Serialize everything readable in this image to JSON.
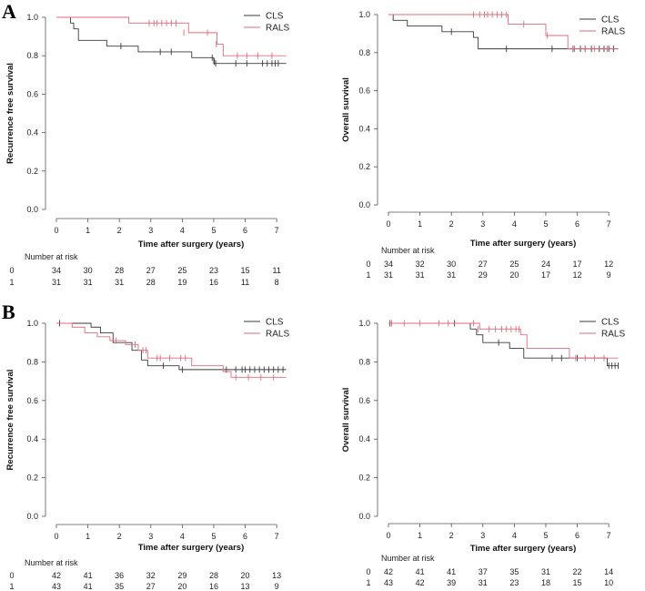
{
  "panel_letters": [
    "A",
    "B"
  ],
  "chart_data": [
    {
      "type": "line",
      "panel": "A",
      "title": "",
      "xlabel": "Time after surgery (years)",
      "ylabel": "Recurrence free survival",
      "xlim": [
        0,
        7.4
      ],
      "ylim": [
        0,
        1
      ],
      "xticks": [
        0,
        1,
        2,
        3,
        4,
        5,
        6,
        7
      ],
      "yticks": [
        0.0,
        0.2,
        0.4,
        0.6,
        0.8,
        1.0
      ],
      "legend": "top-right",
      "series": [
        {
          "name": "CLS",
          "color": "#3a3a3a",
          "steps": [
            [
              0,
              1.0
            ],
            [
              0.45,
              0.97
            ],
            [
              0.55,
              0.94
            ],
            [
              0.7,
              0.88
            ],
            [
              1.6,
              0.85
            ],
            [
              2.6,
              0.82
            ],
            [
              4.3,
              0.79
            ],
            [
              5.0,
              0.76
            ],
            [
              7.3,
              0.76
            ]
          ],
          "censors": [
            [
              2.05,
              0.85
            ],
            [
              3.3,
              0.82
            ],
            [
              3.65,
              0.82
            ],
            [
              4.95,
              0.79
            ],
            [
              5.02,
              0.77
            ],
            [
              5.06,
              0.76
            ],
            [
              5.7,
              0.76
            ],
            [
              6.05,
              0.76
            ],
            [
              6.55,
              0.76
            ],
            [
              6.7,
              0.76
            ],
            [
              6.85,
              0.76
            ],
            [
              6.95,
              0.76
            ],
            [
              7.05,
              0.76
            ]
          ]
        },
        {
          "name": "RALS",
          "color": "#e06a7e",
          "steps": [
            [
              0,
              1.0
            ],
            [
              2.3,
              0.97
            ],
            [
              4.2,
              0.92
            ],
            [
              5.1,
              0.86
            ],
            [
              5.3,
              0.8
            ],
            [
              7.3,
              0.8
            ]
          ],
          "censors": [
            [
              2.95,
              0.97
            ],
            [
              3.1,
              0.97
            ],
            [
              3.2,
              0.97
            ],
            [
              3.35,
              0.97
            ],
            [
              3.5,
              0.97
            ],
            [
              3.65,
              0.97
            ],
            [
              3.8,
              0.97
            ],
            [
              4.05,
              0.92
            ],
            [
              4.8,
              0.92
            ],
            [
              5.08,
              0.86
            ],
            [
              5.75,
              0.8
            ],
            [
              6.05,
              0.8
            ],
            [
              6.4,
              0.8
            ],
            [
              6.85,
              0.8
            ]
          ]
        }
      ],
      "risk_table": {
        "title": "Number at risk",
        "rows": [
          {
            "label": "0",
            "values": [
              "34",
              "30",
              "28",
              "27",
              "25",
              "23",
              "15",
              "11"
            ]
          },
          {
            "label": "1",
            "values": [
              "31",
              "31",
              "31",
              "28",
              "19",
              "16",
              "11",
              "8"
            ]
          }
        ]
      }
    },
    {
      "type": "line",
      "panel": "A",
      "title": "",
      "xlabel": "Time after surgery (years)",
      "ylabel": "Overall survival",
      "xlim": [
        0,
        7.4
      ],
      "ylim": [
        0,
        1
      ],
      "xticks": [
        0,
        1,
        2,
        3,
        4,
        5,
        6,
        7
      ],
      "yticks": [
        0.0,
        0.2,
        0.4,
        0.6,
        0.8,
        1.0
      ],
      "legend": "top-right",
      "series": [
        {
          "name": "CLS",
          "color": "#3a3a3a",
          "steps": [
            [
              0,
              1.0
            ],
            [
              0.15,
              0.97
            ],
            [
              0.6,
              0.94
            ],
            [
              1.7,
              0.91
            ],
            [
              2.7,
              0.88
            ],
            [
              2.85,
              0.82
            ],
            [
              7.3,
              0.82
            ]
          ],
          "censors": [
            [
              2.0,
              0.91
            ],
            [
              3.75,
              0.82
            ],
            [
              5.2,
              0.82
            ],
            [
              5.9,
              0.82
            ],
            [
              6.1,
              0.82
            ],
            [
              6.25,
              0.82
            ],
            [
              6.45,
              0.82
            ],
            [
              6.7,
              0.82
            ],
            [
              6.85,
              0.82
            ],
            [
              7.0,
              0.82
            ],
            [
              7.15,
              0.82
            ]
          ]
        },
        {
          "name": "RALS",
          "color": "#e06a7e",
          "steps": [
            [
              0,
              1.0
            ],
            [
              3.8,
              0.95
            ],
            [
              5.0,
              0.89
            ],
            [
              5.7,
              0.82
            ],
            [
              7.3,
              0.82
            ]
          ],
          "censors": [
            [
              2.7,
              1.0
            ],
            [
              2.9,
              1.0
            ],
            [
              3.05,
              1.0
            ],
            [
              3.15,
              1.0
            ],
            [
              3.3,
              1.0
            ],
            [
              3.45,
              1.0
            ],
            [
              3.6,
              1.0
            ],
            [
              3.75,
              1.0
            ],
            [
              4.3,
              0.95
            ],
            [
              5.05,
              0.89
            ],
            [
              5.85,
              0.82
            ],
            [
              6.25,
              0.82
            ],
            [
              6.55,
              0.82
            ],
            [
              6.95,
              0.82
            ]
          ]
        }
      ],
      "risk_table": {
        "title": "Number at risk",
        "rows": [
          {
            "label": "0",
            "values": [
              "34",
              "32",
              "30",
              "27",
              "25",
              "24",
              "17",
              "12"
            ]
          },
          {
            "label": "1",
            "values": [
              "31",
              "31",
              "31",
              "29",
              "20",
              "17",
              "12",
              "9"
            ]
          }
        ]
      }
    },
    {
      "type": "line",
      "panel": "B",
      "title": "",
      "xlabel": "Time after surgery (years)",
      "ylabel": "Recurrence free survival",
      "xlim": [
        0,
        7.4
      ],
      "ylim": [
        0,
        1
      ],
      "xticks": [
        0,
        1,
        2,
        3,
        4,
        5,
        6,
        7
      ],
      "yticks": [
        0.0,
        0.2,
        0.4,
        0.6,
        0.8,
        1.0
      ],
      "legend": "top-right",
      "series": [
        {
          "name": "CLS",
          "color": "#3a3a3a",
          "steps": [
            [
              0,
              1.0
            ],
            [
              1.1,
              0.98
            ],
            [
              1.4,
              0.95
            ],
            [
              1.8,
              0.9
            ],
            [
              2.4,
              0.86
            ],
            [
              2.7,
              0.81
            ],
            [
              2.9,
              0.78
            ],
            [
              3.9,
              0.76
            ],
            [
              7.3,
              0.76
            ]
          ],
          "censors": [
            [
              0.1,
              1.0
            ],
            [
              3.4,
              0.78
            ],
            [
              4.0,
              0.76
            ],
            [
              5.4,
              0.76
            ],
            [
              5.7,
              0.76
            ],
            [
              5.9,
              0.76
            ],
            [
              6.0,
              0.76
            ],
            [
              6.15,
              0.76
            ],
            [
              6.3,
              0.76
            ],
            [
              6.45,
              0.76
            ],
            [
              6.6,
              0.76
            ],
            [
              6.75,
              0.76
            ],
            [
              6.9,
              0.76
            ],
            [
              7.05,
              0.76
            ],
            [
              7.2,
              0.76
            ]
          ]
        },
        {
          "name": "RALS",
          "color": "#e06a7e",
          "steps": [
            [
              0,
              1.0
            ],
            [
              0.5,
              0.98
            ],
            [
              0.9,
              0.95
            ],
            [
              1.3,
              0.93
            ],
            [
              1.7,
              0.91
            ],
            [
              2.2,
              0.89
            ],
            [
              2.6,
              0.86
            ],
            [
              2.9,
              0.82
            ],
            [
              4.3,
              0.78
            ],
            [
              5.3,
              0.75
            ],
            [
              5.55,
              0.72
            ],
            [
              7.3,
              0.72
            ]
          ],
          "censors": [
            [
              1.9,
              0.91
            ],
            [
              2.5,
              0.89
            ],
            [
              2.75,
              0.86
            ],
            [
              2.85,
              0.86
            ],
            [
              3.2,
              0.82
            ],
            [
              3.3,
              0.82
            ],
            [
              3.6,
              0.82
            ],
            [
              3.95,
              0.82
            ],
            [
              4.1,
              0.82
            ],
            [
              5.7,
              0.72
            ],
            [
              6.1,
              0.72
            ],
            [
              6.5,
              0.72
            ],
            [
              6.9,
              0.72
            ]
          ]
        }
      ],
      "risk_table": {
        "title": "Number at risk",
        "rows": [
          {
            "label": "0",
            "values": [
              "42",
              "41",
              "36",
              "32",
              "29",
              "28",
              "20",
              "13"
            ]
          },
          {
            "label": "1",
            "values": [
              "43",
              "41",
              "35",
              "27",
              "20",
              "16",
              "13",
              "9"
            ]
          }
        ]
      }
    },
    {
      "type": "line",
      "panel": "B",
      "title": "",
      "xlabel": "Time after surgery (years)",
      "ylabel": "Overall survival",
      "xlim": [
        0,
        7.4
      ],
      "ylim": [
        0,
        1
      ],
      "xticks": [
        0,
        1,
        2,
        3,
        4,
        5,
        6,
        7
      ],
      "yticks": [
        0.0,
        0.2,
        0.4,
        0.6,
        0.8,
        1.0
      ],
      "legend": "top-right",
      "series": [
        {
          "name": "CLS",
          "color": "#3a3a3a",
          "steps": [
            [
              0,
              1.0
            ],
            [
              2.6,
              0.97
            ],
            [
              2.8,
              0.94
            ],
            [
              3.0,
              0.9
            ],
            [
              3.85,
              0.87
            ],
            [
              4.3,
              0.82
            ],
            [
              6.95,
              0.78
            ],
            [
              7.3,
              0.78
            ]
          ],
          "censors": [
            [
              0.05,
              1.0
            ],
            [
              2.1,
              1.0
            ],
            [
              3.5,
              0.9
            ],
            [
              5.2,
              0.82
            ],
            [
              5.5,
              0.82
            ],
            [
              6.0,
              0.82
            ],
            [
              7.0,
              0.78
            ],
            [
              7.1,
              0.78
            ],
            [
              7.2,
              0.78
            ],
            [
              7.3,
              0.78
            ]
          ]
        },
        {
          "name": "RALS",
          "color": "#e06a7e",
          "steps": [
            [
              0,
              1.0
            ],
            [
              2.9,
              0.97
            ],
            [
              3.1,
              0.97
            ],
            [
              4.2,
              0.94
            ],
            [
              4.4,
              0.87
            ],
            [
              5.75,
              0.82
            ],
            [
              7.3,
              0.82
            ]
          ],
          "censors": [
            [
              0.1,
              1.0
            ],
            [
              0.5,
              1.0
            ],
            [
              1.0,
              1.0
            ],
            [
              1.6,
              1.0
            ],
            [
              1.9,
              1.0
            ],
            [
              2.7,
              1.0
            ],
            [
              2.85,
              0.97
            ],
            [
              3.2,
              0.97
            ],
            [
              3.4,
              0.97
            ],
            [
              3.6,
              0.97
            ],
            [
              3.75,
              0.97
            ],
            [
              3.9,
              0.97
            ],
            [
              4.05,
              0.97
            ],
            [
              4.15,
              0.97
            ],
            [
              5.95,
              0.82
            ],
            [
              6.25,
              0.82
            ],
            [
              6.55,
              0.82
            ],
            [
              6.85,
              0.82
            ]
          ]
        }
      ],
      "risk_table": {
        "title": "Number at risk",
        "rows": [
          {
            "label": "0",
            "values": [
              "42",
              "41",
              "41",
              "37",
              "35",
              "31",
              "22",
              "14"
            ]
          },
          {
            "label": "1",
            "values": [
              "43",
              "42",
              "39",
              "31",
              "23",
              "18",
              "15",
              "10"
            ]
          }
        ]
      }
    }
  ]
}
